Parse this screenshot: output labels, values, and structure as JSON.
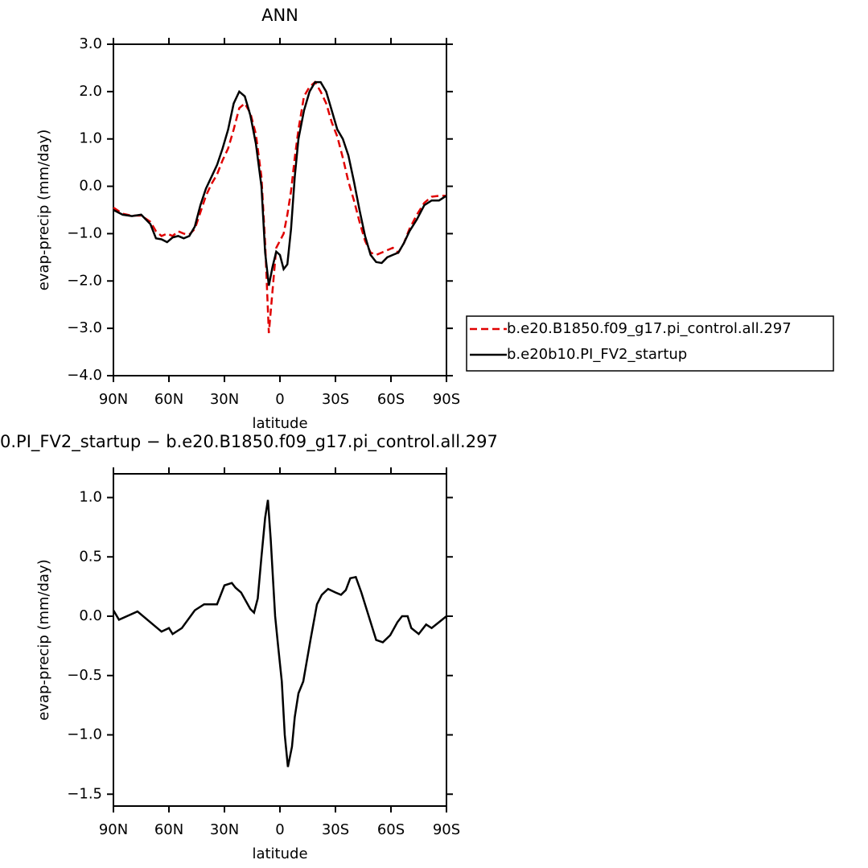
{
  "chart_data": [
    {
      "type": "line",
      "title": "ANN",
      "xlabel": "latitude",
      "ylabel": "evap-precip (mm/day)",
      "xlim": [
        90,
        -90
      ],
      "ylim": [
        -4,
        3
      ],
      "xticks": [
        {
          "value": 90,
          "label": "90N"
        },
        {
          "value": 60,
          "label": "60N"
        },
        {
          "value": 30,
          "label": "30N"
        },
        0,
        {
          "value": -30,
          "label": "30S"
        },
        {
          "value": -60,
          "label": "60S"
        },
        {
          "value": -90,
          "label": "90S"
        }
      ],
      "yticks": [
        {
          "value": 3,
          "label": "3.0"
        },
        {
          "value": 2,
          "label": "2.0"
        },
        {
          "value": 1,
          "label": "1.0"
        },
        {
          "value": 0,
          "label": "0.0"
        },
        {
          "value": -1,
          "label": "−1.0"
        },
        {
          "value": -2,
          "label": "−2.0"
        },
        {
          "value": -3,
          "label": "−3.0"
        },
        {
          "value": -4,
          "label": "−4.0"
        }
      ],
      "x": [
        90,
        85,
        80,
        75,
        70,
        67,
        64,
        61,
        58,
        55,
        52,
        49,
        46,
        43,
        40,
        37,
        34,
        31,
        28,
        25,
        22,
        19,
        16,
        13,
        10,
        8,
        6,
        4,
        2,
        0,
        -2,
        -4,
        -6,
        -8,
        -10,
        -13,
        -16,
        -19,
        -22,
        -25,
        -28,
        -31,
        -34,
        -37,
        -40,
        -43,
        -46,
        -49,
        -52,
        -55,
        -58,
        -61,
        -64,
        -67,
        -70,
        -74,
        -78,
        -82,
        -86,
        -90
      ],
      "series": [
        {
          "name": "b.e20.B1850.f09_g17.pi_control.all.297",
          "color": "#e00000",
          "line_style": "dashed",
          "values": [
            -0.45,
            -0.58,
            -0.62,
            -0.62,
            -0.75,
            -0.95,
            -1.05,
            -1.0,
            -1.05,
            -0.95,
            -1.0,
            -1.02,
            -0.9,
            -0.55,
            -0.2,
            0.05,
            0.25,
            0.55,
            0.8,
            1.2,
            1.65,
            1.75,
            1.55,
            1.1,
            0.2,
            -1.2,
            -3.1,
            -2.2,
            -1.3,
            -1.15,
            -1.0,
            -0.6,
            -0.1,
            0.6,
            1.2,
            1.9,
            2.1,
            2.2,
            2.0,
            1.75,
            1.35,
            1.05,
            0.6,
            0.1,
            -0.3,
            -0.75,
            -1.15,
            -1.4,
            -1.45,
            -1.4,
            -1.35,
            -1.3,
            -1.4,
            -1.2,
            -0.9,
            -0.6,
            -0.35,
            -0.22,
            -0.2,
            -0.2
          ]
        },
        {
          "name": "b.e20b10.PI_FV2_startup",
          "color": "#000000",
          "line_style": "solid",
          "values": [
            -0.5,
            -0.6,
            -0.63,
            -0.6,
            -0.8,
            -1.1,
            -1.12,
            -1.18,
            -1.08,
            -1.05,
            -1.1,
            -1.05,
            -0.85,
            -0.4,
            -0.05,
            0.2,
            0.45,
            0.8,
            1.2,
            1.75,
            2.0,
            1.9,
            1.5,
            0.9,
            0.0,
            -1.4,
            -2.1,
            -1.7,
            -1.38,
            -1.45,
            -1.75,
            -1.65,
            -0.9,
            0.2,
            1.0,
            1.6,
            2.0,
            2.2,
            2.2,
            2.0,
            1.6,
            1.2,
            1.0,
            0.65,
            0.1,
            -0.5,
            -1.05,
            -1.45,
            -1.6,
            -1.62,
            -1.5,
            -1.45,
            -1.4,
            -1.2,
            -0.95,
            -0.7,
            -0.4,
            -0.3,
            -0.3,
            -0.2
          ]
        }
      ]
    },
    {
      "type": "line",
      "title": "0.PI_FV2_startup − b.e20.B1850.f09_g17.pi_control.all.297",
      "xlabel": "latitude",
      "ylabel": "evap-precip (mm/day)",
      "xlim": [
        90,
        -90
      ],
      "ylim": [
        -1.6,
        1.2
      ],
      "xticks": [
        {
          "value": 90,
          "label": "90N"
        },
        {
          "value": 60,
          "label": "60N"
        },
        {
          "value": 30,
          "label": "30N"
        },
        0,
        {
          "value": -30,
          "label": "30S"
        },
        {
          "value": -60,
          "label": "60S"
        },
        {
          "value": -90,
          "label": "90S"
        }
      ],
      "yticks": [
        {
          "value": 1,
          "label": "1.0"
        },
        0.5,
        {
          "value": 0,
          "label": "0.0"
        },
        {
          "value": -0.5,
          "label": "−0.5"
        },
        {
          "value": -1,
          "label": "−1.0"
        },
        {
          "value": -1.5,
          "label": "−1.5"
        }
      ],
      "x": [
        90,
        87,
        77,
        64,
        60,
        58,
        53,
        46,
        41,
        34,
        30,
        26,
        24,
        21,
        16,
        14,
        12,
        10,
        8,
        6.5,
        5,
        2.6,
        1,
        -1,
        -2.6,
        -4.3,
        -6.5,
        -8,
        -10,
        -12.6,
        -16.5,
        -20,
        -22.6,
        -26,
        -30,
        -33,
        -35.6,
        -38,
        -41,
        -44,
        -47,
        -52,
        -55.6,
        -59.6,
        -63.5,
        -66,
        -69,
        -71,
        -75,
        -79,
        -82,
        -86,
        -90
      ],
      "color": "#000000",
      "values": [
        0.05,
        -0.03,
        0.04,
        -0.13,
        -0.1,
        -0.15,
        -0.1,
        0.05,
        0.1,
        0.1,
        0.26,
        0.28,
        0.24,
        0.2,
        0.06,
        0.03,
        0.15,
        0.5,
        0.83,
        0.98,
        0.65,
        0.0,
        -0.25,
        -0.55,
        -1.0,
        -1.27,
        -1.1,
        -0.85,
        -0.65,
        -0.55,
        -0.2,
        0.1,
        0.18,
        0.23,
        0.2,
        0.18,
        0.22,
        0.32,
        0.33,
        0.2,
        0.05,
        -0.2,
        -0.22,
        -0.16,
        -0.05,
        0.0,
        0.0,
        -0.1,
        -0.15,
        -0.07,
        -0.1,
        -0.05,
        0.0
      ]
    }
  ]
}
